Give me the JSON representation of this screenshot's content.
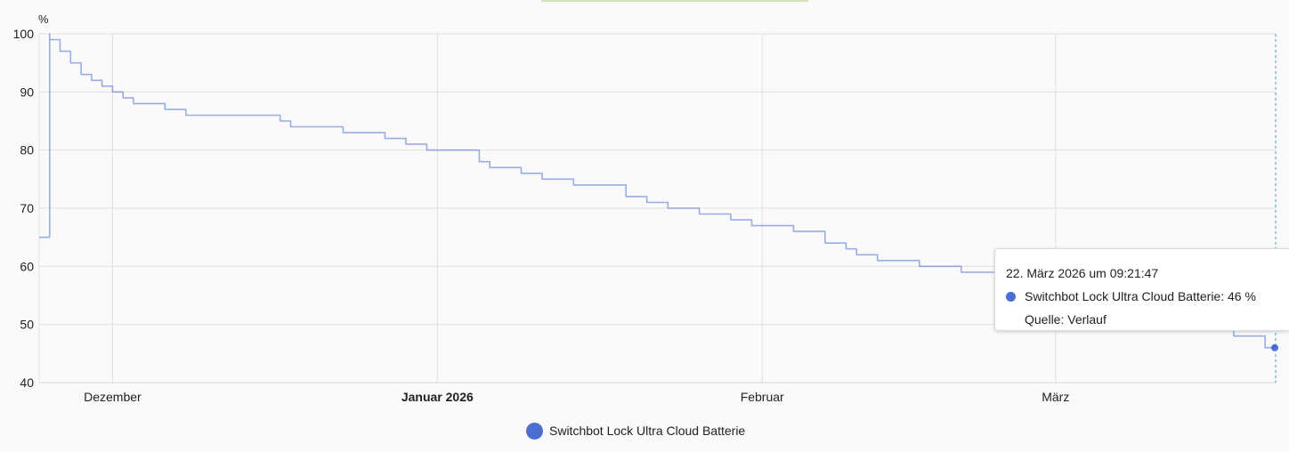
{
  "chart_data": {
    "type": "line",
    "unit": "%",
    "ylim": [
      40,
      100
    ],
    "y_ticks": [
      "100",
      "90",
      "80",
      "70",
      "60",
      "50",
      "40"
    ],
    "x_ticks": [
      {
        "label": "Dezember",
        "date": "2025-12-01",
        "bold": false
      },
      {
        "label": "Januar 2026",
        "date": "2026-01-01",
        "bold": true
      },
      {
        "label": "Februar",
        "date": "2026-02-01",
        "bold": false
      },
      {
        "label": "März",
        "date": "2026-03-01",
        "bold": false
      }
    ],
    "xlim": [
      "2025-11-24",
      "2026-03-22"
    ],
    "grid": true,
    "legend_position": "bottom-center",
    "line_color": "#4b6fd1",
    "series": [
      {
        "name": "Switchbot Lock Ultra Cloud Batterie",
        "points": [
          [
            "2025-11-24",
            65
          ],
          [
            "2025-11-25",
            100
          ],
          [
            "2025-11-25",
            99
          ],
          [
            "2025-11-26",
            98
          ],
          [
            "2025-11-26",
            97
          ],
          [
            "2025-11-27",
            95
          ],
          [
            "2025-11-28",
            94
          ],
          [
            "2025-11-28",
            93
          ],
          [
            "2025-11-29",
            92
          ],
          [
            "2025-11-30",
            91
          ],
          [
            "2025-12-01",
            90
          ],
          [
            "2025-12-02",
            89
          ],
          [
            "2025-12-03",
            88
          ],
          [
            "2025-12-06",
            87
          ],
          [
            "2025-12-08",
            86
          ],
          [
            "2025-12-17",
            85
          ],
          [
            "2025-12-18",
            84
          ],
          [
            "2025-12-23",
            83
          ],
          [
            "2025-12-27",
            82
          ],
          [
            "2025-12-29",
            81
          ],
          [
            "2025-12-31",
            80
          ],
          [
            "2026-01-05",
            78
          ],
          [
            "2026-01-06",
            77
          ],
          [
            "2026-01-09",
            76
          ],
          [
            "2026-01-11",
            75
          ],
          [
            "2026-01-14",
            74
          ],
          [
            "2026-01-19",
            72
          ],
          [
            "2026-01-21",
            71
          ],
          [
            "2026-01-23",
            70
          ],
          [
            "2026-01-26",
            69
          ],
          [
            "2026-01-29",
            68
          ],
          [
            "2026-01-31",
            67
          ],
          [
            "2026-02-02",
            67
          ],
          [
            "2026-02-04",
            66
          ],
          [
            "2026-02-07",
            64
          ],
          [
            "2026-02-09",
            63
          ],
          [
            "2026-02-10",
            62
          ],
          [
            "2026-02-12",
            61
          ],
          [
            "2026-02-16",
            60
          ],
          [
            "2026-02-20",
            59
          ],
          [
            "2026-03-18",
            48
          ],
          [
            "2026-03-21",
            46
          ],
          [
            "2026-03-22",
            46
          ]
        ]
      }
    ]
  },
  "tooltip": {
    "timestamp": "22. März 2026 um 09:21:47",
    "series_label": "Switchbot Lock Ultra Cloud Batterie: 46 %",
    "source": "Quelle: Verlauf"
  },
  "legend": {
    "label": "Switchbot Lock Ultra Cloud Batterie"
  }
}
